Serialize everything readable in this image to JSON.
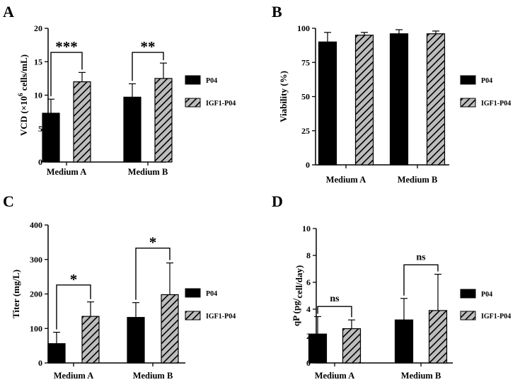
{
  "colors": {
    "solid": "#000000",
    "hatch_bg": "#bdbdbd",
    "hatch_line": "#000000",
    "axis": "#000000"
  },
  "panels": [
    {
      "letter": "A"
    },
    {
      "letter": "B"
    },
    {
      "letter": "C"
    },
    {
      "letter": "D"
    }
  ],
  "chart_data": [
    {
      "panel": "A",
      "type": "bar",
      "categories": [
        "Medium A",
        "Medium B"
      ],
      "ylabel_pre": "VCD (×10",
      "ylabel_sup": "6",
      "ylabel_post": " cells/mL)",
      "ylim": [
        0,
        20
      ],
      "yticks": [
        0,
        5,
        10,
        15,
        20
      ],
      "series": [
        {
          "name": "P04",
          "values": [
            7.3,
            9.7
          ],
          "errors": [
            2.1,
            2.0
          ]
        },
        {
          "name": "IGF1-P04",
          "values": [
            12.0,
            12.5
          ],
          "errors": [
            1.4,
            2.3
          ]
        }
      ],
      "significance": [
        {
          "category": 0,
          "label": "***",
          "y": 16.4
        },
        {
          "category": 1,
          "label": "**",
          "y": 16.4
        }
      ]
    },
    {
      "panel": "B",
      "type": "bar",
      "categories": [
        "Medium A",
        "Medium B"
      ],
      "ylabel": "Viability (%)",
      "ylim": [
        0,
        100
      ],
      "yticks": [
        0,
        25,
        50,
        75,
        100
      ],
      "series": [
        {
          "name": "P04",
          "values": [
            90,
            96
          ],
          "errors": [
            7,
            3
          ]
        },
        {
          "name": "IGF1-P04",
          "values": [
            95,
            96
          ],
          "errors": [
            2,
            2
          ]
        }
      ],
      "significance": []
    },
    {
      "panel": "C",
      "type": "bar",
      "categories": [
        "Medium A",
        "Medium B"
      ],
      "ylabel": "Titer (mg/L)",
      "ylim": [
        0,
        400
      ],
      "yticks": [
        0,
        100,
        200,
        300,
        400
      ],
      "series": [
        {
          "name": "P04",
          "values": [
            56,
            132
          ],
          "errors": [
            33,
            43
          ]
        },
        {
          "name": "IGF1-P04",
          "values": [
            135,
            198
          ],
          "errors": [
            42,
            92
          ]
        }
      ],
      "significance": [
        {
          "category": 0,
          "label": "*",
          "y": 226
        },
        {
          "category": 1,
          "label": "*",
          "y": 333
        }
      ]
    },
    {
      "panel": "D",
      "type": "bar",
      "categories": [
        "Medium A",
        "Medium B"
      ],
      "ylabel_pre": "qP (pg/",
      "ylabel_sub": "cell/day)",
      "ylim": [
        0,
        10
      ],
      "yticks": [
        0,
        2,
        4,
        6,
        8,
        10
      ],
      "series": [
        {
          "name": "P04",
          "values": [
            2.15,
            3.2
          ],
          "errors": [
            1.3,
            1.6
          ]
        },
        {
          "name": "IGF1-P04",
          "values": [
            2.55,
            3.9
          ],
          "errors": [
            0.65,
            2.7
          ]
        }
      ],
      "significance": [
        {
          "category": 0,
          "label": "ns",
          "y": 4.2
        },
        {
          "category": 1,
          "label": "ns",
          "y": 7.3
        }
      ]
    }
  ]
}
